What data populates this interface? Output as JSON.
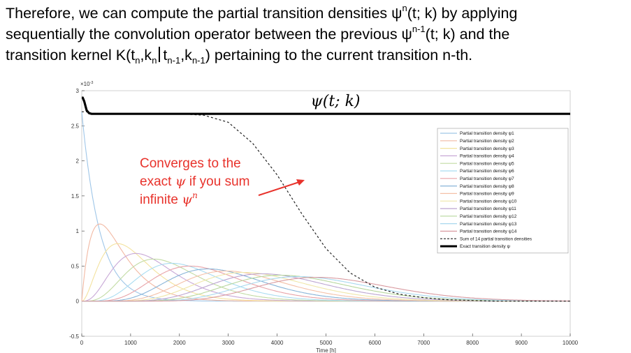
{
  "intro": {
    "line1_pre": "Therefore, we can compute the partial transition densities ψ",
    "line1_sup": "n",
    "line1_post": "(t; k) by applying",
    "line2_pre": "sequentially the convolution operator between the previous ψ",
    "line2_sup": "n-1",
    "line2_post": "(t; k) and the",
    "line3_a": "transition kernel K(t",
    "line3_sub1": "n",
    "line3_b": ",k",
    "line3_sub2": "n",
    "line3_c": "t",
    "line3_sub3": "n-1",
    "line3_d": ",k",
    "line3_sub4": "n-1",
    "line3_e": ") pertaining to the current transition n-th."
  },
  "annotation": {
    "line1": "Converges to the",
    "line2_pre": "exact ",
    "line2_var": "ψ",
    "line2_post": " if you sum",
    "line3_pre": "infinite ",
    "line3_var": "ψ",
    "line3_sup": "n",
    "color": "#e8322b"
  },
  "chart_data": {
    "type": "line",
    "title": "ψ(t; k)",
    "xlabel": "Time [h]",
    "ylabel": "",
    "y_exponent_label": "×10",
    "y_exponent_power": "-3",
    "xlim": [
      0,
      10000
    ],
    "ylim": [
      -0.0005,
      0.003
    ],
    "xticks": [
      "0",
      "1000",
      "2000",
      "3000",
      "4000",
      "5000",
      "6000",
      "7000",
      "8000",
      "9000",
      "10000"
    ],
    "yticks": [
      "3",
      "2.5",
      "2",
      "1.5",
      "1",
      "0.5",
      "0",
      "-0.5"
    ],
    "grid": false,
    "legend_position": "top-right",
    "series_colors": [
      "#9fc6e8",
      "#f2b9a3",
      "#f3e29e",
      "#c8a8d6",
      "#c2dba4",
      "#a9dcf1",
      "#e8a3a8",
      "#88b4d8",
      "#f4c1a8",
      "#efe6a8",
      "#bca5d1",
      "#b7d79e",
      "#a8d8ee",
      "#d99aa0"
    ],
    "series": [
      {
        "name": "Partial transition density ψ1",
        "peak_x": 0,
        "peak_y": 0.0027
      },
      {
        "name": "Partial transition density ψ2",
        "peak_x": 370,
        "peak_y": 0.0011
      },
      {
        "name": "Partial transition density ψ3",
        "peak_x": 740,
        "peak_y": 0.00082
      },
      {
        "name": "Partial transition density ψ4",
        "peak_x": 1110,
        "peak_y": 0.00068
      },
      {
        "name": "Partial transition density ψ5",
        "peak_x": 1480,
        "peak_y": 0.0006
      },
      {
        "name": "Partial transition density ψ6",
        "peak_x": 1850,
        "peak_y": 0.00054
      },
      {
        "name": "Partial transition density ψ7",
        "peak_x": 2220,
        "peak_y": 0.0005
      },
      {
        "name": "Partial transition density ψ8",
        "peak_x": 2590,
        "peak_y": 0.00046
      },
      {
        "name": "Partial transition density ψ9",
        "peak_x": 2960,
        "peak_y": 0.00043
      },
      {
        "name": "Partial transition density ψ10",
        "peak_x": 3330,
        "peak_y": 0.00041
      },
      {
        "name": "Partial transition density ψ11",
        "peak_x": 3700,
        "peak_y": 0.00039
      },
      {
        "name": "Partial transition density ψ12",
        "peak_x": 4070,
        "peak_y": 0.00037
      },
      {
        "name": "Partial transition density ψ13",
        "peak_x": 4440,
        "peak_y": 0.00035
      },
      {
        "name": "Partial transition density ψ14",
        "peak_x": 4810,
        "peak_y": 0.00034
      }
    ],
    "sum_series": {
      "name": "Sum of 14 partial transition densities",
      "x": [
        0,
        100,
        200,
        500,
        1000,
        1500,
        2000,
        2500,
        3000,
        3500,
        4000,
        4500,
        5000,
        5500,
        6000,
        6500,
        7000,
        7500,
        8000,
        8500,
        9000,
        10000
      ],
      "y": [
        0.0027,
        0.0027,
        0.00267,
        0.00267,
        0.00267,
        0.00267,
        0.00267,
        0.00265,
        0.00255,
        0.00225,
        0.0018,
        0.00125,
        0.00075,
        0.0004,
        0.0002,
        0.0001,
        5e-05,
        2e-05,
        1e-05,
        0.0,
        0.0,
        0.0
      ]
    },
    "exact_series": {
      "name": "Exact transition density ψ",
      "x": [
        0,
        20,
        50,
        100,
        150,
        200,
        300,
        10000
      ],
      "y": [
        0.0029,
        0.0029,
        0.00285,
        0.00272,
        0.00268,
        0.00267,
        0.00267,
        0.00267
      ]
    }
  }
}
